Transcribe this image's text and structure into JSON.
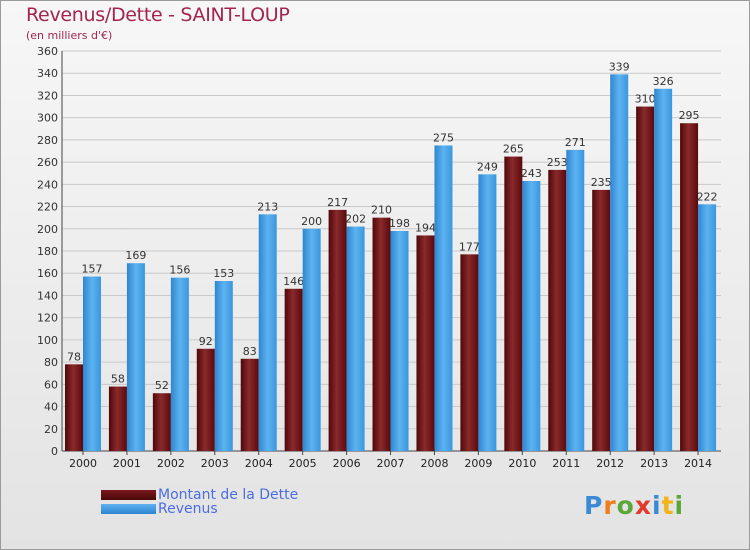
{
  "header": {
    "title": "Revenus/Dette - SAINT-LOUP",
    "subtitle": "(en milliers d'€)"
  },
  "chart_data": {
    "type": "bar",
    "categories": [
      "2000",
      "2001",
      "2002",
      "2003",
      "2004",
      "2005",
      "2006",
      "2007",
      "2008",
      "2009",
      "2010",
      "2011",
      "2012",
      "2013",
      "2014"
    ],
    "series": [
      {
        "name": "Montant de la Dette",
        "color": "#6b0f12",
        "values": [
          78,
          58,
          52,
          92,
          83,
          146,
          217,
          210,
          194,
          177,
          265,
          253,
          235,
          310,
          295
        ]
      },
      {
        "name": "Revenus",
        "color": "#3f9ee6",
        "values": [
          157,
          169,
          156,
          153,
          213,
          200,
          202,
          198,
          275,
          249,
          243,
          271,
          339,
          326,
          222
        ]
      }
    ],
    "ylim": [
      0,
      360
    ],
    "yticks": [
      0,
      20,
      40,
      60,
      80,
      100,
      120,
      140,
      160,
      180,
      200,
      220,
      240,
      260,
      280,
      300,
      320,
      340,
      360
    ],
    "grid": true,
    "legend_position": "bottom-left"
  },
  "legend": {
    "items": [
      {
        "label": "Montant de la Dette",
        "color": "#6b0f12"
      },
      {
        "label": "Revenus",
        "color": "#3f9ee6"
      }
    ]
  },
  "logo": {
    "text": "Proxiti",
    "letters": [
      "P",
      "r",
      "o",
      "x",
      "i",
      "t",
      "i"
    ],
    "colors": [
      "#3a8ad6",
      "#f07d1a",
      "#5aa83a",
      "#e23a2a",
      "#3a8ad6",
      "#f2b317",
      "#5aa83a"
    ]
  }
}
